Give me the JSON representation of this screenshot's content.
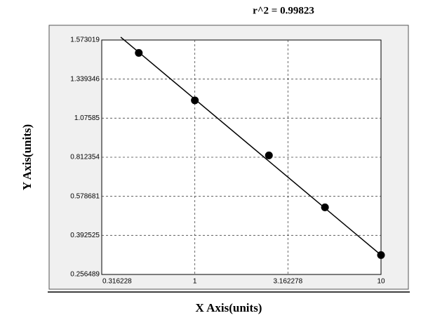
{
  "chart_data": {
    "type": "scatter",
    "annotation": "r^2 = 0.99823",
    "x_label": "X Axis(units)",
    "y_label": "Y Axis(units)",
    "x_scale": "log",
    "x": [
      0.5,
      1,
      2.5,
      5,
      10
    ],
    "values": [
      1.496,
      1.196,
      0.825,
      0.526,
      0.324
    ],
    "color": "#000000",
    "fit_line": {
      "x": [
        0.4,
        10
      ],
      "values": [
        1.59,
        0.324
      ],
      "color": "#000000"
    },
    "xlim": [
      0.316228,
      10
    ],
    "xticks": [
      0.316228,
      1,
      3.162278,
      10
    ],
    "ylim": [
      0.256489,
      1.573019
    ],
    "yticks": [
      0.256489,
      0.392525,
      0.578681,
      0.812354,
      1.07585,
      1.339346,
      1.573019
    ],
    "grid": true
  }
}
